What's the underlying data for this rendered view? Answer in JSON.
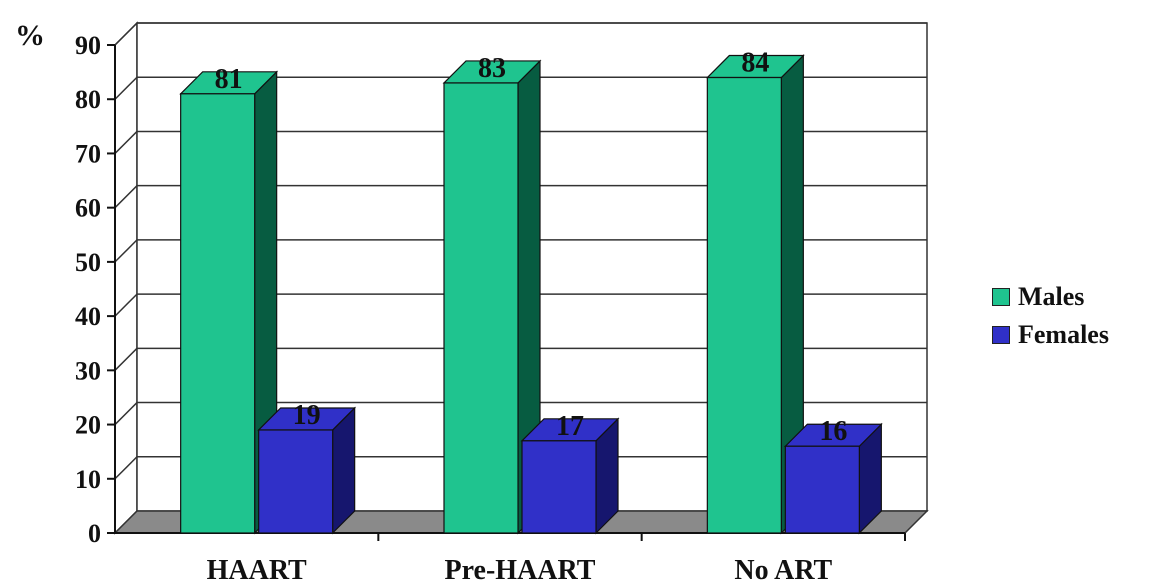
{
  "chart_data": {
    "type": "bar",
    "ylabel": "%",
    "xlabel": "",
    "categories": [
      "HAART",
      "Pre-HAART",
      "No ART"
    ],
    "series": [
      {
        "name": "Males",
        "values": [
          81,
          83,
          84
        ],
        "color": "#1fc48f",
        "side_color": "#075c41"
      },
      {
        "name": "Females",
        "values": [
          19,
          17,
          16
        ],
        "color": "#3030c8",
        "side_color": "#16166e"
      }
    ],
    "ylim": [
      0,
      90
    ],
    "yticks": [
      0,
      10,
      20,
      30,
      40,
      50,
      60,
      70,
      80,
      90
    ],
    "grid": true,
    "legend_position": "right",
    "style": "3d-column"
  }
}
